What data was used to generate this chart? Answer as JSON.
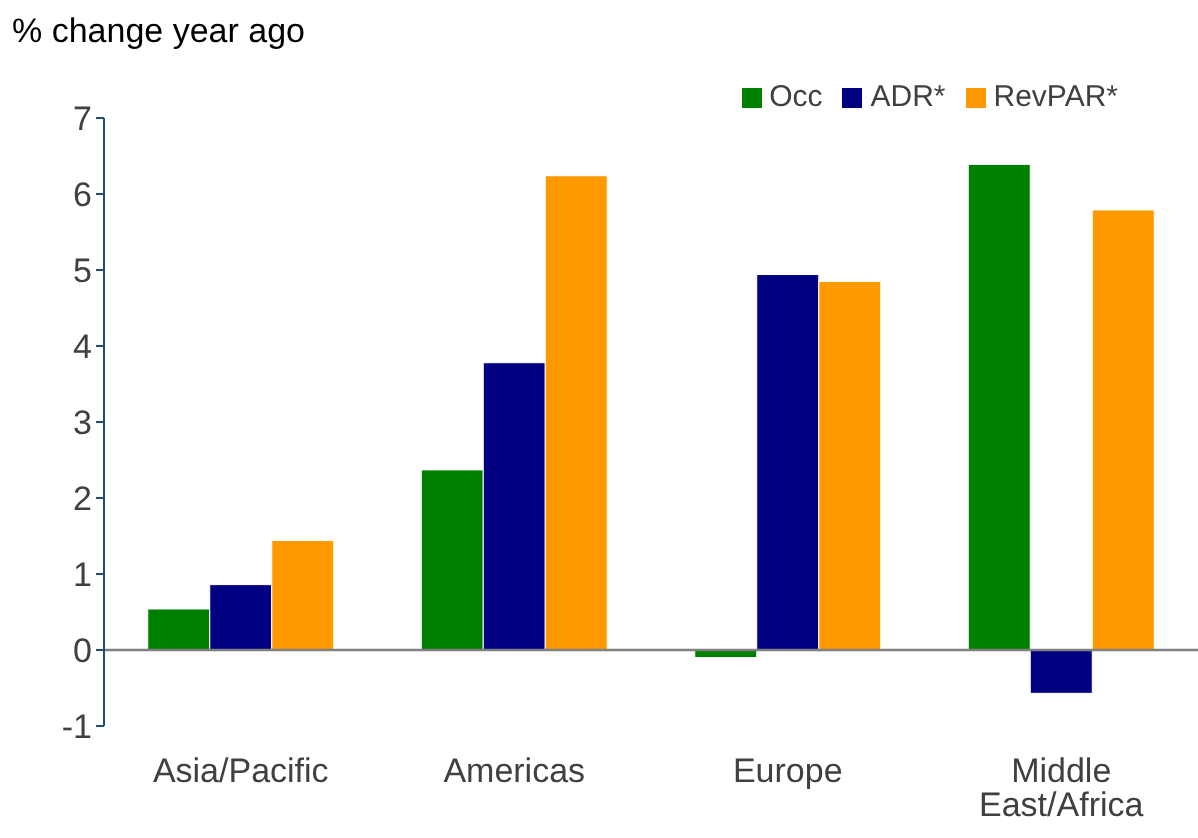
{
  "chart_data": {
    "type": "bar",
    "ylabel": "% change year ago",
    "categories": [
      "Asia/Pacific",
      "Americas",
      "Europe",
      "Middle East/Africa"
    ],
    "series": [
      {
        "name": "Occ",
        "color": "#008000",
        "values": [
          0.54,
          2.37,
          -0.1,
          6.39
        ]
      },
      {
        "name": "ADR*",
        "color": "#000080",
        "values": [
          0.86,
          3.78,
          4.94,
          -0.57
        ]
      },
      {
        "name": "RevPAR*",
        "color": "#ff9900",
        "values": [
          1.44,
          6.24,
          4.85,
          5.79
        ]
      }
    ],
    "ylim": [
      -1,
      7
    ],
    "yticks": [
      -1,
      0,
      1,
      2,
      3,
      4,
      5,
      6,
      7
    ],
    "grid": false,
    "legend": "top right",
    "ref_lines": [
      {
        "axis": "y",
        "value": 0,
        "color": "#808080"
      }
    ]
  }
}
